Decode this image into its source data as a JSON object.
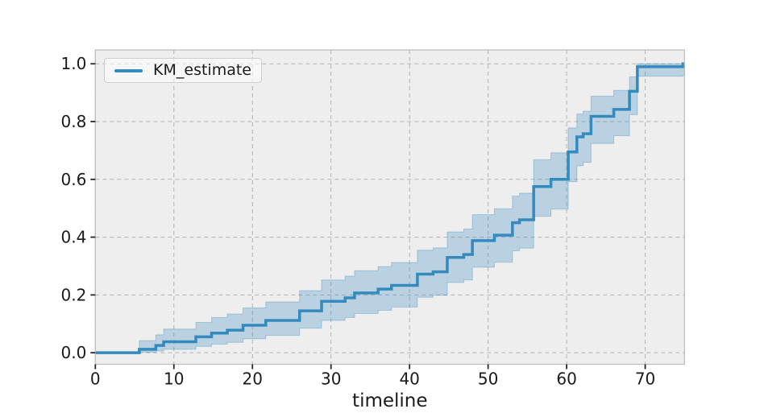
{
  "figure": {
    "background": "#ffffff",
    "axes_background": "#eeeeee",
    "grid_color": "#b3b3b3",
    "spine_color": "#bcbcbc",
    "tick_color": "#262626",
    "text_color": "#1a1a1a"
  },
  "legend": {
    "label": "KM_estimate",
    "line_color": "#348ABD"
  },
  "chart_data": {
    "type": "line",
    "subtype": "step-post",
    "title": "",
    "xlabel": "timeline",
    "ylabel": "",
    "grid": true,
    "legend_position": "upper left",
    "xlim": [
      0,
      75
    ],
    "ylim": [
      -0.04,
      1.048
    ],
    "xticks": {
      "values": [
        0,
        10,
        20,
        30,
        40,
        50,
        60,
        70
      ],
      "labels": [
        "0",
        "10",
        "20",
        "30",
        "40",
        "50",
        "60",
        "70"
      ]
    },
    "yticks": {
      "values": [
        0.0,
        0.2,
        0.4,
        0.6,
        0.8,
        1.0
      ],
      "labels": [
        "0.0",
        "0.2",
        "0.4",
        "0.6",
        "0.8",
        "1.0"
      ]
    },
    "series": [
      {
        "name": "KM_estimate",
        "color": "#348ABD",
        "line_width": 3.5,
        "band_alpha": 0.28,
        "x": [
          0,
          5.6,
          7.7,
          8.7,
          12.8,
          14.8,
          16.8,
          18.8,
          21.7,
          26,
          28.8,
          31.8,
          33,
          36,
          37.7,
          41,
          43,
          44.8,
          46.9,
          48,
          50.8,
          53.1,
          54,
          55.8,
          58,
          60.2,
          61.3,
          62.1,
          63.1,
          66,
          68,
          69,
          74.8
        ],
        "y": [
          0,
          0.012,
          0.025,
          0.038,
          0.055,
          0.068,
          0.078,
          0.095,
          0.112,
          0.145,
          0.178,
          0.19,
          0.207,
          0.22,
          0.233,
          0.272,
          0.28,
          0.33,
          0.34,
          0.388,
          0.407,
          0.45,
          0.46,
          0.575,
          0.6,
          0.695,
          0.747,
          0.758,
          0.818,
          0.842,
          0.905,
          0.99,
          1.0
        ],
        "ci_lower": [
          0,
          0.002,
          0.006,
          0.012,
          0.022,
          0.03,
          0.036,
          0.048,
          0.06,
          0.085,
          0.112,
          0.122,
          0.136,
          0.147,
          0.158,
          0.192,
          0.199,
          0.243,
          0.252,
          0.296,
          0.313,
          0.353,
          0.362,
          0.472,
          0.497,
          0.592,
          0.647,
          0.659,
          0.724,
          0.751,
          0.824,
          0.957,
          0.96
        ],
        "ci_upper": [
          0,
          0.042,
          0.062,
          0.082,
          0.105,
          0.122,
          0.134,
          0.155,
          0.176,
          0.215,
          0.252,
          0.265,
          0.284,
          0.298,
          0.312,
          0.355,
          0.363,
          0.418,
          0.428,
          0.478,
          0.498,
          0.542,
          0.552,
          0.668,
          0.692,
          0.778,
          0.826,
          0.836,
          0.888,
          0.908,
          0.955,
          1.0,
          1.0
        ]
      }
    ]
  }
}
